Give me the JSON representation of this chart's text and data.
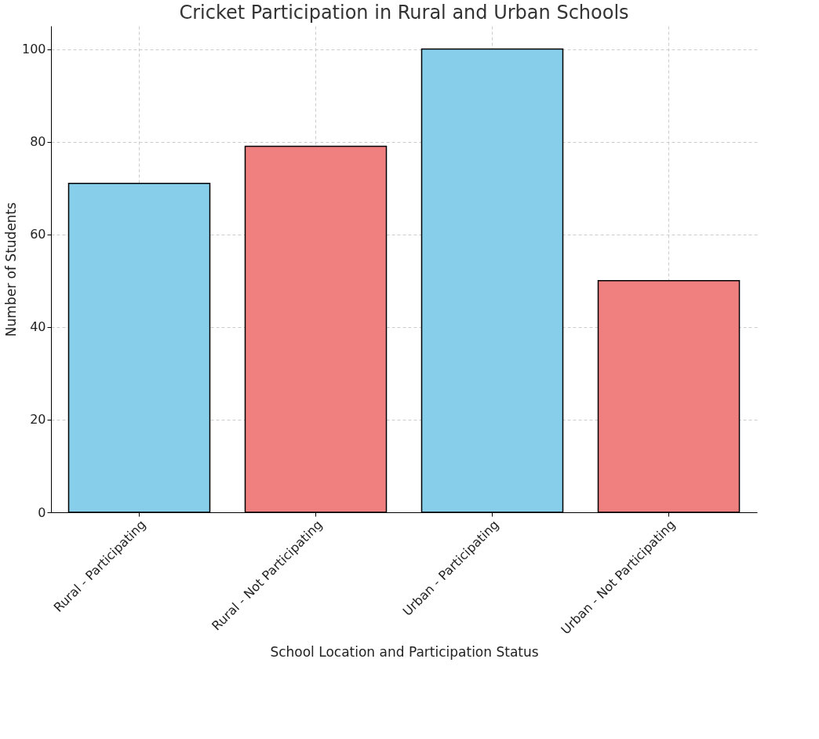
{
  "chart_data": {
    "type": "bar",
    "title": "Cricket Participation in Rural and Urban Schools",
    "xlabel": "School Location and Participation Status",
    "ylabel": "Number of Students",
    "categories": [
      "Rural - Participating",
      "Rural - Not Participating",
      "Urban - Participating",
      "Urban - Not Participating"
    ],
    "values": [
      71,
      79,
      100,
      50
    ],
    "colors": [
      "#87ceeb",
      "#f08080",
      "#87ceeb",
      "#f08080"
    ],
    "ylim": [
      0,
      105
    ],
    "yticks": [
      0,
      20,
      40,
      60,
      80,
      100
    ],
    "grid": true
  }
}
